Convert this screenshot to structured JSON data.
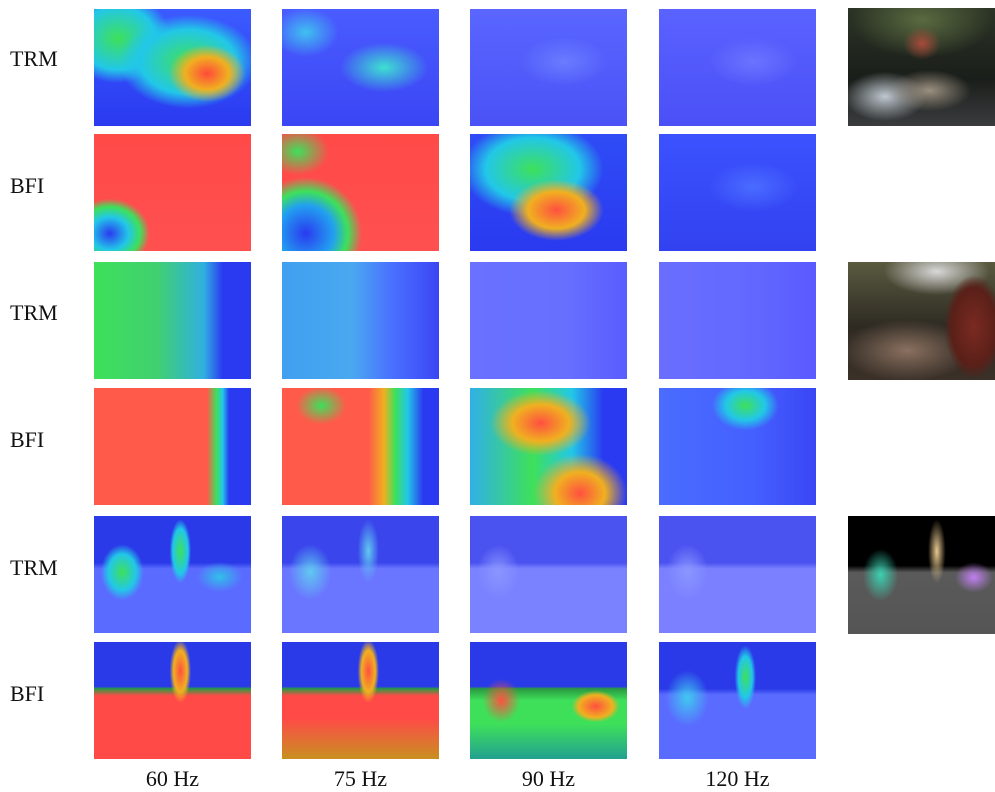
{
  "row_labels": [
    "TRM",
    "BFI",
    "TRM",
    "BFI",
    "TRM",
    "BFI"
  ],
  "column_labels": [
    "60 Hz",
    "75 Hz",
    "90 Hz",
    "120 Hz"
  ],
  "colors": {
    "low": "#3b3bff",
    "mid_low": "#22c7e8",
    "mid": "#3ee05a",
    "mid_high": "#f0c020",
    "high": "#ff4545"
  }
}
